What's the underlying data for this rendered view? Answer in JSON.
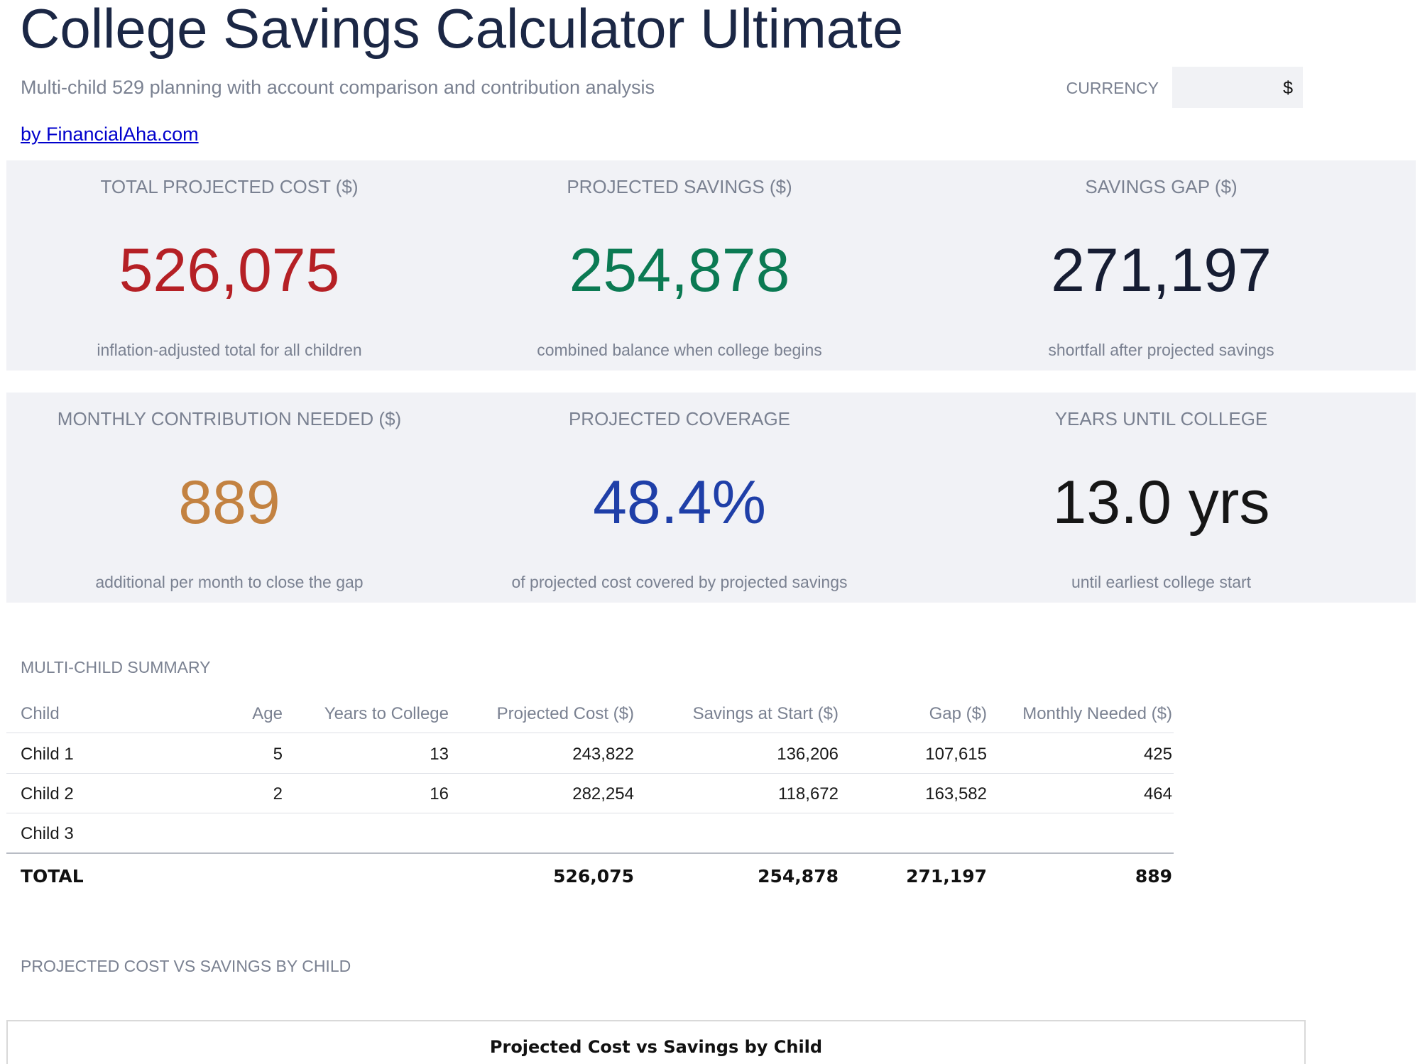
{
  "header": {
    "title": "College Savings Calculator Ultimate",
    "subtitle": "Multi-child 529 planning with account comparison and contribution analysis",
    "byline": "by FinancialAha.com",
    "currency_label": "CURRENCY",
    "currency_value": "$"
  },
  "kpis_row1": [
    {
      "label": "TOTAL PROJECTED COST ($)",
      "value": "526,075",
      "sub": "inflation-adjusted total for all children",
      "color": "#b52025"
    },
    {
      "label": "PROJECTED SAVINGS ($)",
      "value": "254,878",
      "sub": "combined balance when college begins",
      "color": "#0b7a53"
    },
    {
      "label": "SAVINGS GAP ($)",
      "value": "271,197",
      "sub": "shortfall after projected savings",
      "color": "#161d33"
    }
  ],
  "kpis_row2": [
    {
      "label": "MONTHLY CONTRIBUTION NEEDED ($)",
      "value": "889",
      "sub": "additional per month to close the gap",
      "color": "#c38241"
    },
    {
      "label": "PROJECTED COVERAGE",
      "value": "48.4%",
      "sub": "of projected cost covered by projected savings",
      "color": "#1f3fa8"
    },
    {
      "label": "YEARS UNTIL COLLEGE",
      "value": "13.0 yrs",
      "sub": "until earliest college start",
      "color": "#161616"
    }
  ],
  "summary": {
    "section_label": "MULTI-CHILD SUMMARY",
    "headers": [
      "Child",
      "Age",
      "Years to College",
      "Projected Cost ($)",
      "Savings at Start ($)",
      "Gap ($)",
      "Monthly Needed ($)"
    ],
    "rows": [
      [
        "Child 1",
        "5",
        "13",
        "243,822",
        "136,206",
        "107,615",
        "425"
      ],
      [
        "Child 2",
        "2",
        "16",
        "282,254",
        "118,672",
        "163,582",
        "464"
      ],
      [
        "Child 3",
        "",
        "",
        "",
        "",
        "",
        ""
      ]
    ],
    "total": [
      "TOTAL",
      "",
      "",
      "526,075",
      "254,878",
      "271,197",
      "889"
    ]
  },
  "chart_section": {
    "section_label": "PROJECTED COST VS SAVINGS BY CHILD",
    "chart_title": "Projected Cost vs Savings by Child"
  }
}
